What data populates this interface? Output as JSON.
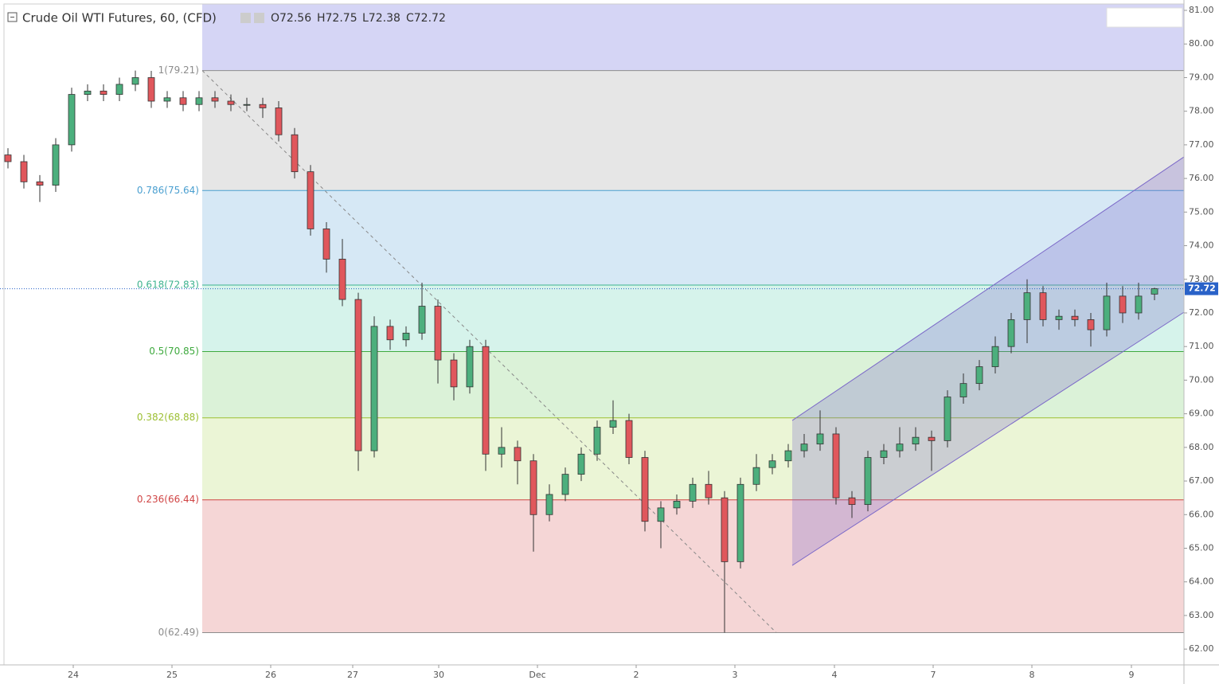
{
  "chart_data": {
    "type": "candlestick",
    "header": {
      "title": "Crude Oil WTI Futures, 60, (CFD)",
      "open": "O72.56",
      "high": "H72.75",
      "low": "L72.38",
      "close": "C72.72"
    },
    "up_color": "#4caf7d",
    "down_color": "#e0575c",
    "x": [
      1,
      5,
      9,
      13,
      17,
      21,
      25,
      29,
      33,
      37,
      41,
      45,
      49,
      53,
      57,
      61,
      65,
      69,
      73,
      77,
      81,
      85,
      89,
      93,
      97,
      101,
      105,
      109,
      113,
      117,
      121,
      125,
      129,
      133,
      137,
      141,
      145,
      149,
      153,
      157,
      161,
      165,
      169,
      173,
      177,
      181,
      185,
      189,
      193,
      197,
      201,
      205,
      209,
      213,
      217,
      221,
      225,
      229,
      233,
      237,
      241,
      245,
      249,
      253,
      257,
      261,
      265,
      269,
      273,
      277,
      281,
      285,
      289
    ],
    "open": [
      76.7,
      76.5,
      75.9,
      75.8,
      77.0,
      78.5,
      78.6,
      78.5,
      78.8,
      79.0,
      78.3,
      78.4,
      78.2,
      78.4,
      78.3,
      78.2,
      78.2,
      78.1,
      77.3,
      76.2,
      74.5,
      73.6,
      72.4,
      67.9,
      71.6,
      71.2,
      71.4,
      72.2,
      70.6,
      69.8,
      71.0,
      67.8,
      68.0,
      67.6,
      66.0,
      66.6,
      67.2,
      67.8,
      68.6,
      68.8,
      67.7,
      65.8,
      66.2,
      66.4,
      66.9,
      66.5,
      64.6,
      66.9,
      67.4,
      67.6,
      67.9,
      68.1,
      68.4,
      66.5,
      66.3,
      67.7,
      67.9,
      68.1,
      68.3,
      68.2,
      69.5,
      69.9,
      70.4,
      71.0,
      71.8,
      72.6,
      71.8,
      71.9,
      71.8,
      71.5,
      72.5,
      72.0,
      72.56
    ],
    "high": [
      76.9,
      76.7,
      76.1,
      77.2,
      78.7,
      78.8,
      78.8,
      79.0,
      79.21,
      79.2,
      78.6,
      78.6,
      78.6,
      78.6,
      78.5,
      78.4,
      78.4,
      78.3,
      77.5,
      76.4,
      74.7,
      74.2,
      72.6,
      71.9,
      71.8,
      71.6,
      72.9,
      72.4,
      70.8,
      71.2,
      71.2,
      68.6,
      68.2,
      67.8,
      66.9,
      67.4,
      68.0,
      68.8,
      69.4,
      69.0,
      67.9,
      66.4,
      66.6,
      67.1,
      67.3,
      66.7,
      67.1,
      67.8,
      67.8,
      68.1,
      68.4,
      69.1,
      68.6,
      66.7,
      67.9,
      68.1,
      68.6,
      68.6,
      68.5,
      69.7,
      70.2,
      70.6,
      71.3,
      72.0,
      73.0,
      72.8,
      72.1,
      72.1,
      72.0,
      72.9,
      72.8,
      72.9,
      72.75
    ],
    "low": [
      76.3,
      75.7,
      75.3,
      75.6,
      76.8,
      78.3,
      78.3,
      78.3,
      78.6,
      78.1,
      78.1,
      78.0,
      78.0,
      78.1,
      78.0,
      78.0,
      77.8,
      77.1,
      76.0,
      74.3,
      73.2,
      72.2,
      67.3,
      67.7,
      70.9,
      71.0,
      71.2,
      69.9,
      69.4,
      69.6,
      67.3,
      67.4,
      66.9,
      64.9,
      65.8,
      66.4,
      67.0,
      67.6,
      68.4,
      67.5,
      65.5,
      65.0,
      66.0,
      66.2,
      66.3,
      62.49,
      64.4,
      66.7,
      67.2,
      67.4,
      67.7,
      67.9,
      66.3,
      65.9,
      66.1,
      67.5,
      67.7,
      67.9,
      67.3,
      68.0,
      69.3,
      69.7,
      70.2,
      70.8,
      71.1,
      71.6,
      71.5,
      71.6,
      71.0,
      71.3,
      71.7,
      71.8,
      72.38
    ],
    "close": [
      76.5,
      75.9,
      75.8,
      77.0,
      78.5,
      78.6,
      78.5,
      78.8,
      79.0,
      78.3,
      78.4,
      78.2,
      78.4,
      78.3,
      78.2,
      78.2,
      78.1,
      77.3,
      76.2,
      74.5,
      73.6,
      72.4,
      67.9,
      71.6,
      71.2,
      71.4,
      72.2,
      70.6,
      69.8,
      71.0,
      67.8,
      68.0,
      67.6,
      66.0,
      66.6,
      67.2,
      67.8,
      68.6,
      68.8,
      67.7,
      65.8,
      66.2,
      66.4,
      66.9,
      66.5,
      64.6,
      66.9,
      67.4,
      67.6,
      67.9,
      68.1,
      68.4,
      66.5,
      66.3,
      67.7,
      67.9,
      68.1,
      68.3,
      68.2,
      69.5,
      69.9,
      70.4,
      71.0,
      71.8,
      72.6,
      71.8,
      71.9,
      71.8,
      71.5,
      72.5,
      72.0,
      72.5,
      72.72
    ],
    "xlim": [
      0,
      296.4
    ],
    "ylim": [
      61.53,
      81.19
    ],
    "xticks": [
      {
        "value": 17.4,
        "label": "24"
      },
      {
        "value": 42.2,
        "label": "25"
      },
      {
        "value": 67,
        "label": "26"
      },
      {
        "value": 87.6,
        "label": "27"
      },
      {
        "value": 109.2,
        "label": "30"
      },
      {
        "value": 134,
        "label": "Dec"
      },
      {
        "value": 158.8,
        "label": "2"
      },
      {
        "value": 183.6,
        "label": "3"
      },
      {
        "value": 208.6,
        "label": "4"
      },
      {
        "value": 233.4,
        "label": "7"
      },
      {
        "value": 258.2,
        "label": "8"
      },
      {
        "value": 283.2,
        "label": "9"
      }
    ],
    "yticks": [
      {
        "value": 62,
        "label": "62.00"
      },
      {
        "value": 63,
        "label": "63.00"
      },
      {
        "value": 64,
        "label": "64.00"
      },
      {
        "value": 65,
        "label": "65.00"
      },
      {
        "value": 66,
        "label": "66.00"
      },
      {
        "value": 67,
        "label": "67.00"
      },
      {
        "value": 68,
        "label": "68.00"
      },
      {
        "value": 69,
        "label": "69.00"
      },
      {
        "value": 70,
        "label": "70.00"
      },
      {
        "value": 71,
        "label": "71.00"
      },
      {
        "value": 72,
        "label": "72.00"
      },
      {
        "value": 73,
        "label": "73.00"
      },
      {
        "value": 74,
        "label": "74.00"
      },
      {
        "value": 75,
        "label": "75.00"
      },
      {
        "value": 76,
        "label": "76.00"
      },
      {
        "value": 77,
        "label": "77.00"
      },
      {
        "value": 78,
        "label": "78.00"
      },
      {
        "value": 79,
        "label": "79.00"
      },
      {
        "value": 80,
        "label": "80.00"
      },
      {
        "value": 81,
        "label": "81.00"
      }
    ],
    "current_price": 72.72,
    "current_price_color": "#2962c8",
    "fib_start_x": 49.8,
    "fib_top_fill": "#d5d5f5",
    "fib_levels": [
      {
        "value": 79.21,
        "label": "1(79.21)",
        "color": "#8c8c8c",
        "fill": "#e6e6e6"
      },
      {
        "value": 75.64,
        "label": "0.786(75.64)",
        "color": "#4a9fd0",
        "fill": "#d6e8f5"
      },
      {
        "value": 72.83,
        "label": "0.618(72.83)",
        "color": "#3fb38f",
        "fill": "#d6f3eb"
      },
      {
        "value": 70.85,
        "label": "0.5(70.85)",
        "color": "#3faa3f",
        "fill": "#dbf2d8"
      },
      {
        "value": 68.88,
        "label": "0.382(68.88)",
        "color": "#9cbf32",
        "fill": "#ebf5d6"
      },
      {
        "value": 66.44,
        "label": "0.236(66.44)",
        "color": "#d04545",
        "fill": "#f5d6d6"
      },
      {
        "value": 62.49,
        "label": "0(62.49)",
        "color": "#8c8c8c"
      }
    ],
    "trend_line": {
      "x": [
        49.8,
        194
      ],
      "y": [
        79.21,
        62.49
      ]
    },
    "channel": {
      "x": [
        198,
        296.4
      ],
      "upper": [
        68.8,
        76.64
      ],
      "lower": [
        64.49,
        72.02
      ],
      "color": "#7b68c8"
    }
  }
}
